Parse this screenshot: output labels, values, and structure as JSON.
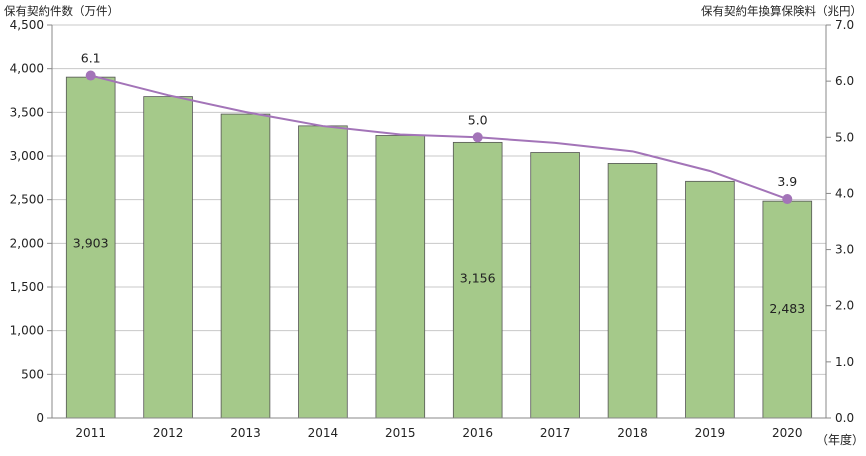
{
  "chart_data": {
    "type": "bar",
    "left_axis_title": "保有契約件数（万件）",
    "right_axis_title": "保有契約年換算保険料（兆円）",
    "x_unit_label": "（年度）",
    "categories": [
      "2011",
      "2012",
      "2013",
      "2014",
      "2015",
      "2016",
      "2017",
      "2018",
      "2019",
      "2020"
    ],
    "bar_series": {
      "values": [
        3903,
        3680,
        3480,
        3345,
        3235,
        3156,
        3040,
        2915,
        2710,
        2483
      ],
      "color": "#a5c98a",
      "labels": [
        {
          "index": 0,
          "text": "3,903"
        },
        {
          "index": 5,
          "text": "3,156"
        },
        {
          "index": 9,
          "text": "2,483"
        }
      ]
    },
    "line_series": {
      "values": [
        6.1,
        5.75,
        5.45,
        5.2,
        5.05,
        5.0,
        4.9,
        4.75,
        4.4,
        3.9
      ],
      "color": "#a374b8",
      "markers": [
        0,
        5,
        9
      ],
      "labels": [
        {
          "index": 0,
          "text": "6.1"
        },
        {
          "index": 5,
          "text": "5.0"
        },
        {
          "index": 9,
          "text": "3.9"
        }
      ]
    },
    "left_axis": {
      "min": 0,
      "max": 4500,
      "ticks": [
        {
          "v": 0,
          "t": "0"
        },
        {
          "v": 500,
          "t": "500"
        },
        {
          "v": 1000,
          "t": "1,000"
        },
        {
          "v": 1500,
          "t": "1,500"
        },
        {
          "v": 2000,
          "t": "2,000"
        },
        {
          "v": 2500,
          "t": "2,500"
        },
        {
          "v": 3000,
          "t": "3,000"
        },
        {
          "v": 3500,
          "t": "3,500"
        },
        {
          "v": 4000,
          "t": "4,000"
        },
        {
          "v": 4500,
          "t": "4,500"
        }
      ]
    },
    "right_axis": {
      "min": 0,
      "max": 7,
      "ticks": [
        {
          "v": 0,
          "t": "0.0"
        },
        {
          "v": 1,
          "t": "1.0"
        },
        {
          "v": 2,
          "t": "2.0"
        },
        {
          "v": 3,
          "t": "3.0"
        },
        {
          "v": 4,
          "t": "4.0"
        },
        {
          "v": 5,
          "t": "5.0"
        },
        {
          "v": 6,
          "t": "6.0"
        },
        {
          "v": 7,
          "t": "7.0"
        }
      ]
    },
    "grid": true,
    "grid_color": "#c8c8c8",
    "axis_color": "#888888"
  }
}
